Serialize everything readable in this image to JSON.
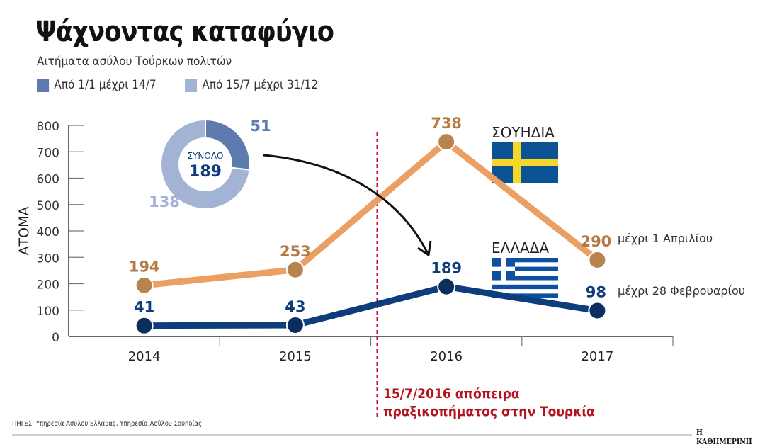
{
  "header": {
    "title": "Ψάχνοντας καταφύγιο",
    "subtitle": "Αιτήματα ασύλου Τούρκων πολιτών"
  },
  "legend": {
    "items": [
      {
        "label": "Από 1/1 μέχρι 14/7",
        "color": "#5d7bae"
      },
      {
        "label": "Από 15/7 μέχρι 31/12",
        "color": "#a3b3d3"
      }
    ]
  },
  "donut": {
    "center_label": "ΣΥΝΟΛΟ",
    "total": "189",
    "slices": [
      {
        "label": "51",
        "value": 51,
        "color": "#5d7bae"
      },
      {
        "label": "138",
        "value": 138,
        "color": "#a3b3d3"
      }
    ]
  },
  "annotations": {
    "sweden_label": "ΣΟΥΗΔΙΑ",
    "greece_label": "ΕΛΛΑΔΑ",
    "sweden_note": "μέχρι 1 Απριλίου",
    "greece_note": "μέχρι 28 Φεβρουαρίου",
    "event_line1": "15/7/2016 απόπειρα",
    "event_line2": "πραξικοπήματος στην Τουρκία"
  },
  "footer": {
    "source": "ΠΗΓΕΣ: Υπηρεσία Ασύλου Ελλάδας, Υπηρεσία Ασύλου Σουηδίας",
    "brand": "Η ΚΑΘΗΜΕΡΙΝΗ"
  },
  "colors": {
    "sweden_line": "#eb9f62",
    "sweden_marker": "#b8834f",
    "greece_line": "#0d3d7a",
    "greece_marker": "#0b2e5e",
    "event_line": "#c8102e"
  },
  "chart_data": {
    "type": "line",
    "title": "Ψάχνοντας καταφύγιο",
    "subtitle": "Αιτήματα ασύλου Τούρκων πολιτών",
    "xlabel": "",
    "ylabel": "ΑΤΟΜΑ",
    "x": [
      "2014",
      "2015",
      "2016",
      "2017"
    ],
    "ylim": [
      0,
      800
    ],
    "yticks": [
      0,
      100,
      200,
      300,
      400,
      500,
      600,
      700,
      800
    ],
    "grid": false,
    "series": [
      {
        "name": "ΣΟΥΗΔΙΑ",
        "values": [
          194,
          253,
          738,
          290
        ],
        "labels": [
          "194",
          "253",
          "738",
          "290"
        ]
      },
      {
        "name": "ΕΛΛΑΔΑ",
        "values": [
          41,
          43,
          189,
          98
        ],
        "labels": [
          "41",
          "43",
          "189",
          "98"
        ]
      }
    ],
    "event_marker": {
      "position": "between 2015 and 2016 (15/7/2016)",
      "label": "15/7/2016 απόπειρα πραξικοπήματος στην Τουρκία"
    },
    "inset_donut": {
      "title": "ΣΥΝΟΛΟ 189 (Ελλάδα 2016)",
      "values": [
        51,
        138
      ],
      "labels": [
        "Από 1/1 μέχρι 14/7",
        "Από 15/7 μέχρι 31/12"
      ]
    }
  }
}
